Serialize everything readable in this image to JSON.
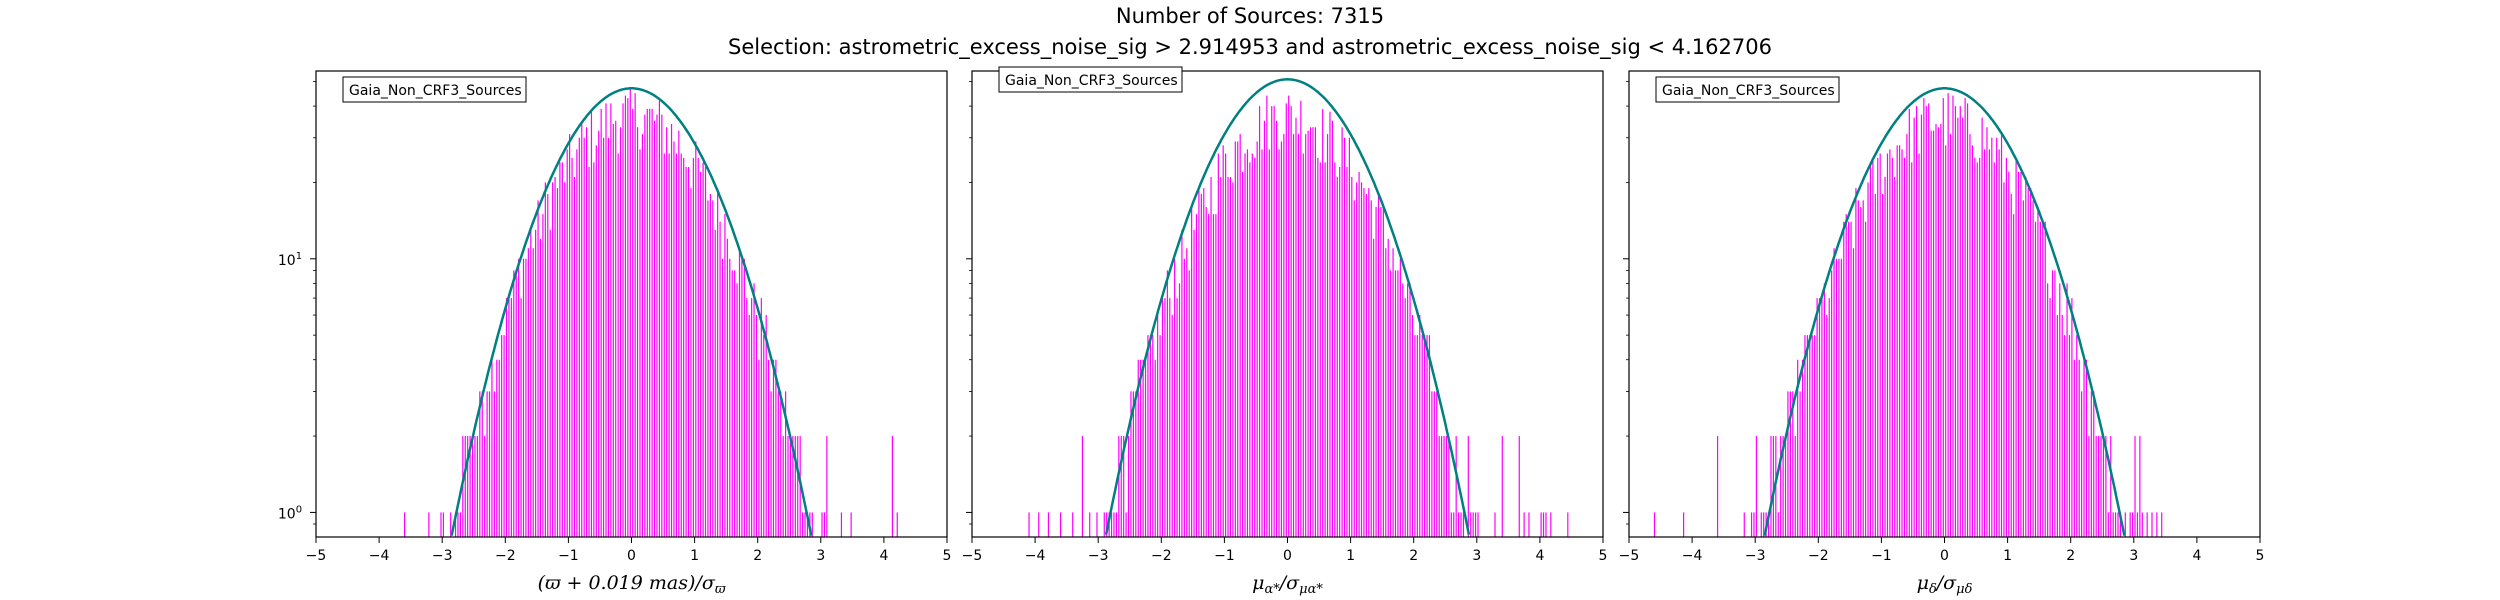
{
  "figure": {
    "title_line1": "Number of Sources: 7315",
    "title_line2": "Selection: astrometric_excess_noise_sig > 2.914953 and astrometric_excess_noise_sig < 4.162706"
  },
  "colors": {
    "histogram": "#ff00ff",
    "gaussian_curve": "#008080",
    "axes": "#000000"
  },
  "chart_data": [
    {
      "type": "histogram",
      "legend": "Gaia_Non_CRF3_Sources",
      "legend_position": "top-left",
      "xlabel": "(ϖ + 0.019 mas)/σϖ",
      "ylabel": "",
      "xlim": [
        -5,
        5
      ],
      "ylim": [
        0.8,
        55
      ],
      "yscale": "log",
      "x_ticks": [
        "−5",
        "−4",
        "−3",
        "−2",
        "−1",
        "0",
        "1",
        "2",
        "3",
        "4",
        "5"
      ],
      "y_ticks": [
        {
          "value": 1,
          "label": "10^0"
        },
        {
          "value": 10,
          "label": "10^1"
        }
      ],
      "histogram_envelope": {
        "peak": 38,
        "sigma": 1.05,
        "xmin": -4.4,
        "xmax": 4.6
      },
      "gaussian": {
        "peak": 47,
        "sigma": 1.0
      }
    },
    {
      "type": "histogram",
      "legend": "Gaia_Non_CRF3_Sources",
      "legend_position": "top-left",
      "xlabel": "μα*/σμα*",
      "ylabel": "",
      "xlim": [
        -5,
        5
      ],
      "ylim": [
        0.8,
        55
      ],
      "yscale": "log",
      "x_ticks": [
        "−5",
        "−4",
        "−3",
        "−2",
        "−1",
        "0",
        "1",
        "2",
        "3",
        "4",
        "5"
      ],
      "y_ticks": [
        {
          "value": 1,
          "label": "10^0"
        },
        {
          "value": 10,
          "label": "10^1"
        }
      ],
      "histogram_envelope": {
        "peak": 38,
        "sigma": 1.05,
        "xmin": -4.6,
        "xmax": 4.6
      },
      "gaussian": {
        "peak": 51,
        "sigma": 1.0
      }
    },
    {
      "type": "histogram",
      "legend": "Gaia_Non_CRF3_Sources",
      "legend_position": "top-left",
      "xlabel": "μδ/σμδ",
      "ylabel": "",
      "xlim": [
        -5,
        5
      ],
      "ylim": [
        0.8,
        55
      ],
      "yscale": "log",
      "x_ticks": [
        "−5",
        "−4",
        "−3",
        "−2",
        "−1",
        "0",
        "1",
        "2",
        "3",
        "4",
        "5"
      ],
      "y_ticks": [
        {
          "value": 1,
          "label": "10^0"
        },
        {
          "value": 10,
          "label": "10^1"
        }
      ],
      "histogram_envelope": {
        "peak": 37,
        "sigma": 1.05,
        "xmin": -4.9,
        "xmax": 3.6
      },
      "gaussian": {
        "peak": 47,
        "sigma": 1.0
      }
    }
  ]
}
